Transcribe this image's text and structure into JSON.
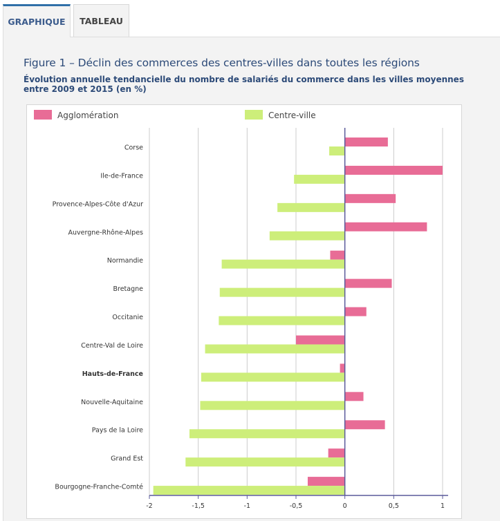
{
  "tabs": [
    {
      "label": "GRAPHIQUE",
      "active": true
    },
    {
      "label": "TABLEAU",
      "active": false
    }
  ],
  "colors": {
    "agglomeration": "#e86c96",
    "centre_ville": "#cdee7a",
    "title": "#2c4a78",
    "grid": "#cccccc",
    "zero_axis": "#5a5a9a"
  },
  "chart_data": {
    "type": "bar",
    "orientation": "horizontal",
    "title": "Figure 1 – Déclin des commerces des centres-villes dans toutes les régions",
    "subtitle": "Évolution annuelle tendancielle du nombre de salariés du commerce dans les villes moyennes entre 2009 et 2015 (en %)",
    "categories": [
      "Corse",
      "Ile-de-France",
      "Provence-Alpes-Côte d'Azur",
      "Auvergne-Rhône-Alpes",
      "Normandie",
      "Bretagne",
      "Occitanie",
      "Centre-Val de Loire",
      "Hauts-de-France",
      "Nouvelle-Aquitaine",
      "Pays de la Loire",
      "Grand Est",
      "Bourgogne-Franche-Comté"
    ],
    "highlighted_category": "Hauts-de-France",
    "series": [
      {
        "name": "Agglomération",
        "values": [
          0.44,
          1.0,
          0.52,
          0.84,
          -0.15,
          0.48,
          0.22,
          -0.5,
          -0.05,
          0.19,
          0.41,
          -0.17,
          -0.38
        ]
      },
      {
        "name": "Centre-ville",
        "values": [
          -0.16,
          -0.52,
          -0.69,
          -0.77,
          -1.26,
          -1.28,
          -1.29,
          -1.43,
          -1.47,
          -1.48,
          -1.59,
          -1.63,
          -1.96
        ]
      }
    ],
    "xlim": [
      -2,
      1
    ],
    "xticks": [
      -2,
      -1.5,
      -1,
      -0.5,
      0,
      0.5,
      1
    ],
    "xtick_labels": [
      "-2",
      "-1,5",
      "-1",
      "-0,5",
      "0",
      "0,5",
      "1"
    ],
    "grid": true,
    "legend_position": "top"
  }
}
